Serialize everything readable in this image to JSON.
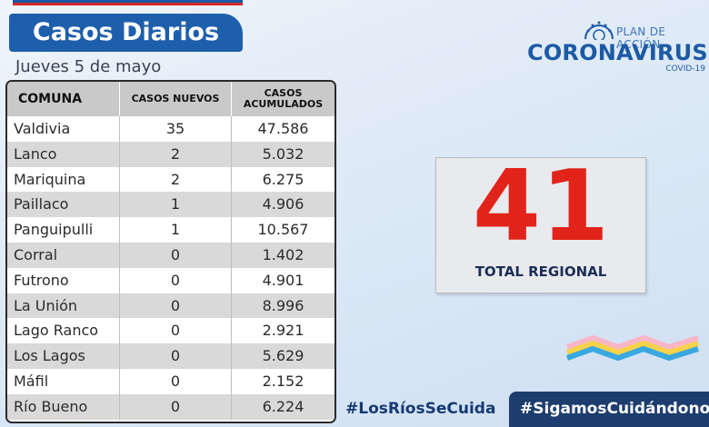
{
  "header": {
    "title": "Casos Diarios",
    "date": "Jueves 5 de mayo"
  },
  "logo": {
    "plan": "PLAN DE ACCIÓN",
    "main": "CORONAVIRUS",
    "sub": "COVID-19"
  },
  "table": {
    "headers": {
      "comuna": "COMUNA",
      "nuevos": "CASOS NUEVOS",
      "acum1": "CASOS",
      "acum2": "ACUMULADOS"
    },
    "rows": [
      {
        "comuna": "Valdivia",
        "nuevos": "35",
        "acumulados": "47.586"
      },
      {
        "comuna": "Lanco",
        "nuevos": "2",
        "acumulados": "5.032"
      },
      {
        "comuna": "Mariquina",
        "nuevos": "2",
        "acumulados": "6.275"
      },
      {
        "comuna": "Paillaco",
        "nuevos": "1",
        "acumulados": "4.906"
      },
      {
        "comuna": "Panguipulli",
        "nuevos": "1",
        "acumulados": "10.567"
      },
      {
        "comuna": "Corral",
        "nuevos": "0",
        "acumulados": "1.402"
      },
      {
        "comuna": "Futrono",
        "nuevos": "0",
        "acumulados": "4.901"
      },
      {
        "comuna": "La Unión",
        "nuevos": "0",
        "acumulados": "8.996"
      },
      {
        "comuna": "Lago Ranco",
        "nuevos": "0",
        "acumulados": "2.921"
      },
      {
        "comuna": "Los Lagos",
        "nuevos": "0",
        "acumulados": "5.629"
      },
      {
        "comuna": "Máfil",
        "nuevos": "0",
        "acumulados": "2.152"
      },
      {
        "comuna": "Río Bueno",
        "nuevos": "0",
        "acumulados": "6.224"
      }
    ]
  },
  "total": {
    "value": "41",
    "label": "TOTAL REGIONAL"
  },
  "footer": {
    "hashtag1": "#LosRíosSeCuida",
    "hashtag2": "#SigamosCuidándonos"
  },
  "colors": {
    "brand_blue": "#1e5fab",
    "accent_red": "#e2231a",
    "dark_navy": "#1d3d6e"
  }
}
